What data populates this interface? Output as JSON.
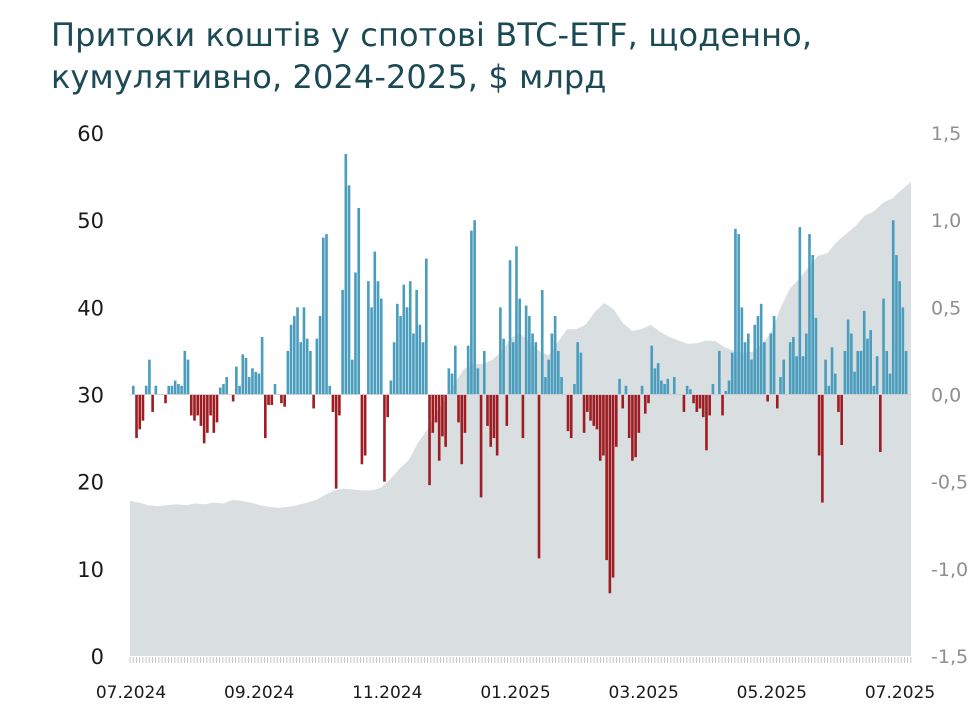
{
  "title_lines": [
    "Притоки коштів у спотові BTC-ETF, щоденно,",
    "кумулятивно, 2024-2025, $ млрд"
  ],
  "colors": {
    "title": "#1b4a55",
    "inflow": "#4a9dbd",
    "outflow": "#9e1c22",
    "cumulative_area": "#d9dfe1",
    "left_tick": "#1a1a1a",
    "right_tick": "#8f8f8f"
  },
  "chart_data": {
    "type": "bar",
    "title": "Притоки коштів у спотові BTC-ETF, щоденно, кумулятивно, 2024-2025, $ млрд",
    "left_axis": {
      "range": [
        0,
        60
      ],
      "ticks": [
        "0",
        "10",
        "20",
        "30",
        "40",
        "50",
        "60"
      ],
      "role": "cumulative"
    },
    "right_axis": {
      "range": [
        -1.5,
        1.5
      ],
      "ticks": [
        "-1,5",
        "-1,0",
        "-0,5",
        "0,0",
        "0,5",
        "1,0",
        "1,5"
      ],
      "role": "daily"
    },
    "x_ticks": [
      "07.2024",
      "09.2024",
      "11.2024",
      "01.2025",
      "03.2025",
      "05.2025",
      "07.2025"
    ],
    "grid": false,
    "series": [
      {
        "type": "area",
        "axis": "left",
        "values": [
          17.8,
          17.6,
          17.3,
          17.2,
          17.3,
          17.4,
          17.3,
          17.5,
          17.4,
          17.6,
          17.5,
          17.9,
          17.8,
          17.6,
          17.3,
          17.1,
          17.0,
          17.1,
          17.3,
          17.6,
          17.9,
          18.5,
          19.0,
          19.2,
          19.1,
          19.0,
          19.0,
          19.3,
          20.3,
          21.5,
          22.5,
          24.5,
          26.0,
          28.0,
          29.5,
          31.5,
          33.0,
          33.5,
          33.5,
          34.0,
          35.0,
          36.5,
          37.0,
          36.0,
          35.0,
          34.5,
          36.0,
          37.5,
          37.5,
          38.0,
          39.5,
          40.5,
          39.8,
          38.2,
          37.3,
          37.5,
          38.0,
          37.2,
          36.6,
          36.2,
          35.8,
          35.9,
          36.2,
          36.1,
          35.4,
          35.0,
          34.8,
          34.9,
          35.8,
          37.2,
          40.0,
          42.2,
          43.3,
          44.7,
          45.9,
          46.2,
          47.5,
          48.4,
          49.3,
          50.5,
          51.0,
          52.0,
          52.5,
          53.5,
          54.4
        ],
        "x_range": [
          "07.2024",
          "07.2025"
        ]
      },
      {
        "type": "bar",
        "axis": "right",
        "name_hint": "daily",
        "values": [
          0.05,
          -0.25,
          -0.2,
          -0.15,
          0.05,
          0.2,
          -0.1,
          0.05,
          0.0,
          0.0,
          -0.05,
          0.05,
          0.05,
          0.08,
          0.06,
          0.05,
          0.25,
          0.2,
          -0.12,
          -0.15,
          -0.12,
          -0.18,
          -0.28,
          -0.22,
          -0.12,
          -0.22,
          -0.16,
          0.04,
          0.06,
          0.1,
          0.0,
          -0.04,
          0.16,
          0.05,
          0.23,
          0.21,
          0.1,
          0.15,
          0.13,
          0.12,
          0.33,
          -0.25,
          -0.06,
          -0.06,
          0.06,
          0.0,
          -0.05,
          -0.07,
          0.25,
          0.4,
          0.45,
          0.5,
          0.3,
          0.5,
          0.32,
          0.25,
          -0.08,
          0.32,
          0.45,
          0.9,
          0.92,
          0.05,
          -0.1,
          -0.54,
          -0.12,
          0.6,
          1.38,
          1.2,
          0.2,
          0.7,
          1.07,
          -0.4,
          -0.35,
          0.65,
          0.5,
          0.82,
          0.65,
          0.55,
          -0.5,
          -0.13,
          0.08,
          0.3,
          0.52,
          0.45,
          0.63,
          0.5,
          0.65,
          0.35,
          0.6,
          0.4,
          0.3,
          0.78,
          -0.52,
          -0.22,
          -0.16,
          -0.38,
          -0.24,
          -0.3,
          0.15,
          0.12,
          0.28,
          -0.16,
          -0.4,
          -0.22,
          0.28,
          0.94,
          1.0,
          0.15,
          -0.59,
          0.25,
          -0.18,
          -0.3,
          -0.25,
          -0.35,
          0.5,
          0.32,
          -0.18,
          0.77,
          0.3,
          0.85,
          0.55,
          -0.25,
          0.51,
          0.45,
          0.35,
          0.3,
          -0.94,
          0.6,
          0.1,
          0.2,
          0.35,
          0.45,
          0.25,
          0.1,
          0.0,
          -0.21,
          -0.25,
          0.06,
          0.3,
          0.24,
          -0.22,
          -0.1,
          -0.15,
          -0.18,
          -0.2,
          -0.38,
          -0.35,
          -0.95,
          -1.14,
          -1.05,
          -0.3,
          0.09,
          -0.08,
          0.05,
          -0.25,
          -0.38,
          -0.36,
          -0.22,
          0.05,
          -0.11,
          -0.05,
          0.28,
          0.15,
          0.18,
          0.08,
          0.06,
          0.09,
          0.0,
          0.1,
          0.0,
          0.0,
          -0.1,
          0.05,
          0.03,
          -0.05,
          -0.1,
          -0.08,
          -0.13,
          -0.32,
          -0.12,
          0.06,
          0.0,
          0.25,
          -0.12,
          0.02,
          0.08,
          0.24,
          0.95,
          0.92,
          0.5,
          0.3,
          0.35,
          0.2,
          0.4,
          0.45,
          0.52,
          0.3,
          -0.04,
          0.35,
          0.45,
          -0.08,
          0.1,
          0.2,
          0.0,
          0.3,
          0.33,
          0.22,
          0.96,
          0.22,
          0.35,
          0.92,
          0.8,
          0.44,
          -0.35,
          -0.62,
          0.2,
          0.05,
          0.27,
          0.12,
          -0.1,
          -0.29,
          0.25,
          0.43,
          0.35,
          0.13,
          0.25,
          0.25,
          0.48,
          0.32,
          0.37,
          0.05,
          0.22,
          -0.33,
          0.55,
          0.25,
          0.12,
          1.0,
          0.8,
          0.65,
          0.5,
          0.25
        ]
      }
    ]
  }
}
